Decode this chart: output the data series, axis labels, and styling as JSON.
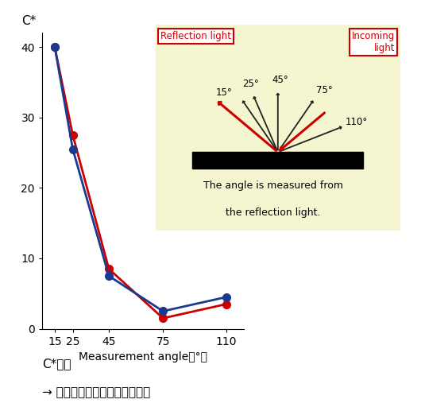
{
  "x": [
    15,
    25,
    45,
    75,
    110
  ],
  "y_red": [
    40,
    27.5,
    8.5,
    1.5,
    3.5
  ],
  "y_blue": [
    40,
    25.5,
    7.5,
    2.5,
    4.5
  ],
  "red_color": "#cc0000",
  "blue_color": "#1a3a8f",
  "ylabel": "C*",
  "xlabel": "Measurement angle（°）",
  "yticks": [
    0,
    10,
    20,
    30,
    40
  ],
  "xticks": [
    15,
    25,
    45,
    75,
    110
  ],
  "ylim": [
    0,
    42
  ],
  "caption_line1": "C*彩度",
  "caption_line2": "→ ギラツキのない高彩度を実現",
  "inset_bg": "#f5f5d0",
  "inset_text_line1": "The angle is measured from",
  "inset_text_line2": "the reflection light.",
  "label_reflection": "Reflection light",
  "label_incoming": "Incoming\nlight",
  "angle_labels": [
    "15°",
    "25°",
    "45°",
    "75°",
    "110°"
  ]
}
